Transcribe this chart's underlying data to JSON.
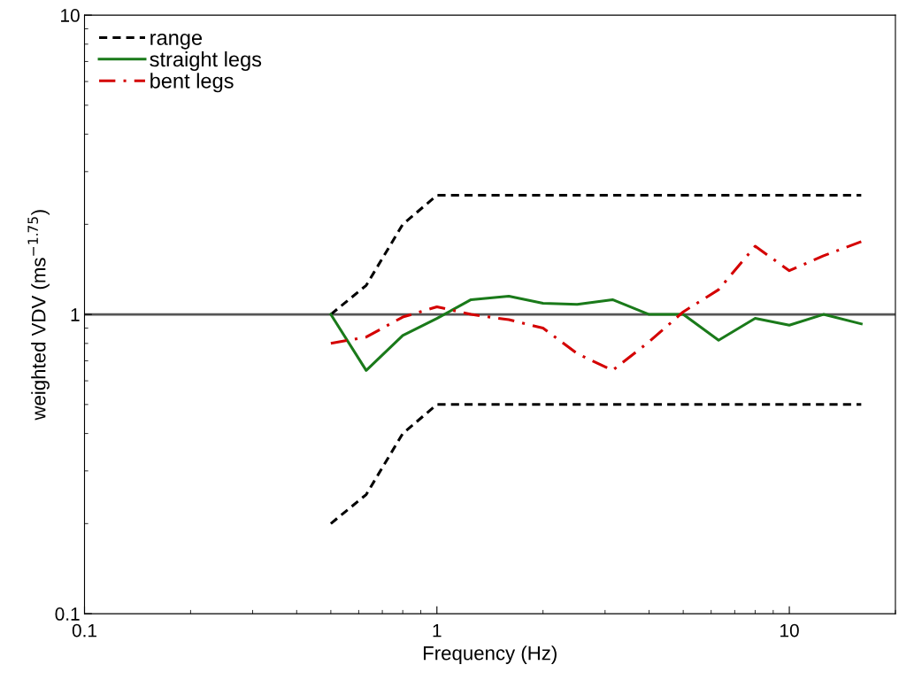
{
  "chart_data": {
    "type": "line",
    "xlabel": "Frequency (Hz)",
    "ylabel": "weighted VDV (ms$^{−1.75}$)",
    "x": [
      0.5,
      0.63,
      0.8,
      1,
      1.25,
      1.6,
      2,
      2.5,
      3.15,
      4,
      5,
      6.3,
      8,
      10,
      12.5,
      16
    ],
    "series": [
      {
        "name": "range",
        "color": "#000000",
        "line_style": "dashed",
        "values": [
          1.0,
          1.25,
          2.0,
          2.5,
          2.5,
          2.5,
          2.5,
          2.5,
          2.5,
          2.5,
          2.5,
          2.5,
          2.5,
          2.5,
          2.5,
          2.5
        ]
      },
      {
        "name": "straight legs",
        "color": "#1a7a1a",
        "line_style": "solid",
        "values": [
          1.0,
          0.65,
          0.85,
          0.97,
          1.12,
          1.15,
          1.09,
          1.08,
          1.12,
          1.0,
          1.0,
          0.82,
          0.97,
          0.92,
          1.0,
          0.93
        ]
      },
      {
        "name": "bent legs",
        "color": "#d40000",
        "line_style": "dashdot",
        "values": [
          0.8,
          0.84,
          0.98,
          1.06,
          1.0,
          0.96,
          0.9,
          0.74,
          0.65,
          0.81,
          1.02,
          1.21,
          1.69,
          1.4,
          1.57,
          1.75
        ]
      },
      {
        "color": "#000000",
        "line_style": "dashed",
        "values": [
          0.2,
          0.25,
          0.4,
          0.5,
          0.5,
          0.5,
          0.5,
          0.5,
          0.5,
          0.5,
          0.5,
          0.5,
          0.5,
          0.5,
          0.5,
          0.5
        ]
      }
    ],
    "ref_lines": [
      {
        "axis": "y",
        "value": 1,
        "color": "#555555"
      }
    ],
    "log": "xy",
    "xlim": [
      0.1,
      20
    ],
    "ylim": [
      0.1,
      10
    ],
    "xticks": [
      0.1,
      1,
      10
    ],
    "yticks": [
      0.1,
      1,
      10
    ],
    "grid": false,
    "legend": "top left"
  }
}
